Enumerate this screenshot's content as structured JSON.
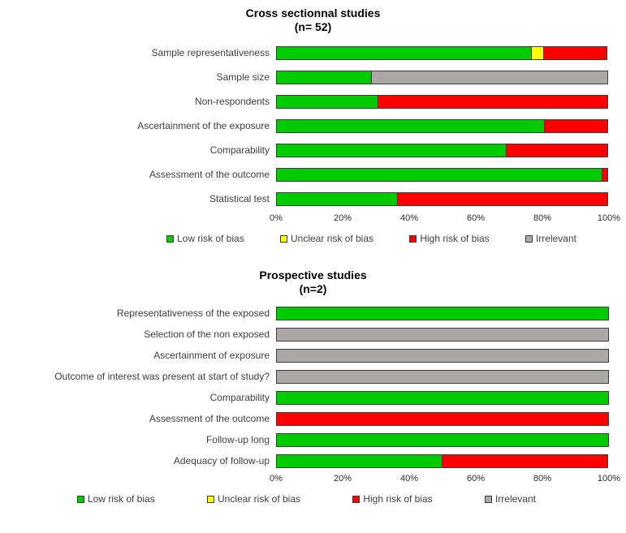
{
  "chart_data": [
    {
      "type": "bar",
      "orientation": "horizontal",
      "stacked": true,
      "title": "Cross sectionnal studies",
      "subtitle": "(n= 52)",
      "xlim": [
        0,
        100
      ],
      "ticks": [
        "0%",
        "20%",
        "40%",
        "60%",
        "80%",
        "100%"
      ],
      "grid": false,
      "legend_position": "bottom",
      "categories": [
        "Sample representativeness",
        "Sample size",
        "Non-respondents",
        "Ascertainment of the exposure",
        "Comparability",
        "Assessment of the outcome",
        "Statistical test"
      ],
      "series": [
        {
          "key": "low",
          "name": "Low risk of bias",
          "color": "#00CC00",
          "values": [
            76.9,
            28.8,
            30.8,
            80.8,
            69.2,
            98.1,
            36.5
          ]
        },
        {
          "key": "unclear",
          "name": "Unclear risk of bias",
          "color": "#FFFF00",
          "values": [
            3.8,
            0,
            0,
            0,
            0,
            0,
            0
          ]
        },
        {
          "key": "high",
          "name": "High risk of bias",
          "color": "#FF0000",
          "values": [
            19.2,
            0,
            69.2,
            19.2,
            30.8,
            1.9,
            63.5
          ]
        },
        {
          "key": "irrelevant",
          "name": "Irrelevant",
          "color": "#ACA8A8",
          "values": [
            0,
            71.2,
            0,
            0,
            0,
            0,
            0
          ]
        }
      ]
    },
    {
      "type": "bar",
      "orientation": "horizontal",
      "stacked": true,
      "title": "Prospective studies",
      "subtitle": "(n=2)",
      "xlim": [
        0,
        100
      ],
      "ticks": [
        "0%",
        "20%",
        "40%",
        "60%",
        "80%",
        "100%"
      ],
      "grid": false,
      "legend_position": "bottom",
      "categories": [
        "Representativeness of the exposed",
        "Selection of the non exposed",
        "Ascertainment of exposure",
        "Outcome of interest was present at start of study?",
        "Comparability",
        "Assessment of the outcome",
        "Follow-up long",
        "Adequacy of follow-up"
      ],
      "series": [
        {
          "key": "low",
          "name": "Low risk of bias",
          "color": "#00CC00",
          "values": [
            100,
            0,
            0,
            0,
            100,
            0,
            100,
            50
          ]
        },
        {
          "key": "unclear",
          "name": "Unclear risk of bias",
          "color": "#FFFF00",
          "values": [
            0,
            0,
            0,
            0,
            0,
            0,
            0,
            0
          ]
        },
        {
          "key": "high",
          "name": "High risk of bias",
          "color": "#FF0000",
          "values": [
            0,
            0,
            0,
            0,
            0,
            100,
            0,
            50
          ]
        },
        {
          "key": "irrelevant",
          "name": "Irrelevant",
          "color": "#ACA8A8",
          "values": [
            0,
            100,
            100,
            100,
            0,
            0,
            0,
            0
          ]
        }
      ]
    }
  ]
}
